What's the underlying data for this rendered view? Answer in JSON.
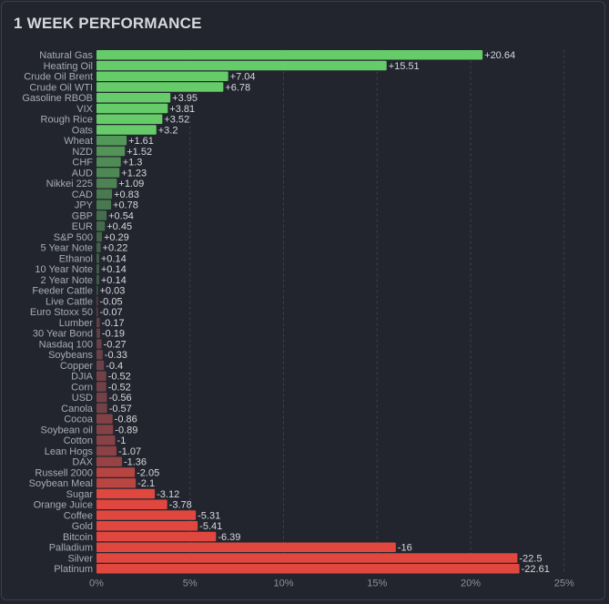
{
  "chart_data": {
    "type": "bar",
    "orientation": "horizontal",
    "title": "1 WEEK PERFORMANCE",
    "xlabel": "",
    "ylabel": "",
    "xlim": [
      0,
      25
    ],
    "xticks": [
      "0%",
      "5%",
      "10%",
      "15%",
      "20%",
      "25%"
    ],
    "grid": true,
    "note": "bar length is absolute value; green = positive, red = negative",
    "colors": {
      "positive_strong": "#66cc6a",
      "positive_weak": "#3e5a45",
      "negative_weak": "#5a4049",
      "negative_strong": "#e0473f"
    },
    "categories": [
      "Natural Gas",
      "Heating Oil",
      "Crude Oil Brent",
      "Crude Oil WTI",
      "Gasoline RBOB",
      "VIX",
      "Rough Rice",
      "Oats",
      "Wheat",
      "NZD",
      "CHF",
      "AUD",
      "Nikkei 225",
      "CAD",
      "JPY",
      "GBP",
      "EUR",
      "S&P 500",
      "5 Year Note",
      "Ethanol",
      "10 Year Note",
      "2 Year Note",
      "Feeder Cattle",
      "Live Cattle",
      "Euro Stoxx 50",
      "Lumber",
      "30 Year Bond",
      "Nasdaq 100",
      "Soybeans",
      "Copper",
      "DJIA",
      "Corn",
      "USD",
      "Canola",
      "Cocoa",
      "Soybean oil",
      "Cotton",
      "Lean Hogs",
      "DAX",
      "Russell 2000",
      "Soybean Meal",
      "Sugar",
      "Orange Juice",
      "Coffee",
      "Gold",
      "Bitcoin",
      "Palladium",
      "Silver",
      "Platinum"
    ],
    "values": [
      20.64,
      15.51,
      7.04,
      6.78,
      3.95,
      3.81,
      3.52,
      3.2,
      1.61,
      1.52,
      1.3,
      1.23,
      1.09,
      0.83,
      0.78,
      0.54,
      0.45,
      0.29,
      0.22,
      0.14,
      0.14,
      0.14,
      0.03,
      -0.05,
      -0.07,
      -0.17,
      -0.19,
      -0.27,
      -0.33,
      -0.4,
      -0.52,
      -0.52,
      -0.56,
      -0.57,
      -0.86,
      -0.89,
      -1,
      -1.07,
      -1.36,
      -2.05,
      -2.1,
      -3.12,
      -3.78,
      -5.31,
      -5.41,
      -6.39,
      -16,
      -22.5,
      -22.61
    ],
    "value_labels": [
      "+20.64",
      "+15.51",
      "+7.04",
      "+6.78",
      "+3.95",
      "+3.81",
      "+3.52",
      "+3.2",
      "+1.61",
      "+1.52",
      "+1.3",
      "+1.23",
      "+1.09",
      "+0.83",
      "+0.78",
      "+0.54",
      "+0.45",
      "+0.29",
      "+0.22",
      "+0.14",
      "+0.14",
      "+0.14",
      "+0.03",
      "-0.05",
      "-0.07",
      "-0.17",
      "-0.19",
      "-0.27",
      "-0.33",
      "-0.4",
      "-0.52",
      "-0.52",
      "-0.56",
      "-0.57",
      "-0.86",
      "-0.89",
      "-1",
      "-1.07",
      "-1.36",
      "-2.05",
      "-2.1",
      "-3.12",
      "-3.78",
      "-5.31",
      "-5.41",
      "-6.39",
      "-16",
      "-22.5",
      "-22.61"
    ]
  }
}
